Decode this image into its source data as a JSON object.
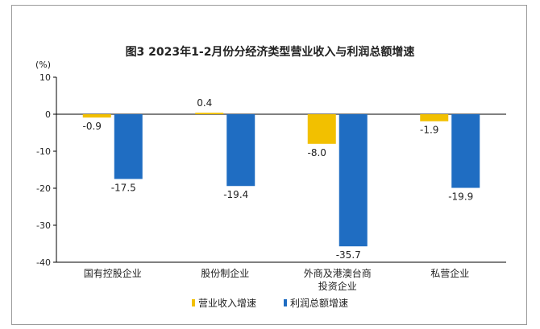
{
  "chart_data": {
    "type": "bar",
    "title": "图3  2023年1-2月份分经济类型营业收入与利润总额增速",
    "ylabel": "(%)",
    "ylim": [
      -40,
      10
    ],
    "yticks": [
      "10",
      "0",
      "-10",
      "-20",
      "-30",
      "-40"
    ],
    "categories": [
      "国有控股企业",
      "股份制企业",
      "外商及港澳台商投资企业",
      "私营企业"
    ],
    "category_lines": [
      [
        "国有控股企业"
      ],
      [
        "股份制企业"
      ],
      [
        "外商及港澳台商",
        "投资企业"
      ],
      [
        "私营企业"
      ]
    ],
    "series": [
      {
        "name": "营业收入增速",
        "values": [
          -0.9,
          0.4,
          -8.0,
          -1.9
        ],
        "labels": [
          "-0.9",
          "0.4",
          "-8.0",
          "-1.9"
        ],
        "color": "#F2C000"
      },
      {
        "name": "利润总额增速",
        "values": [
          -17.5,
          -19.4,
          -35.7,
          -19.9
        ],
        "labels": [
          "-17.5",
          "-19.4",
          "-35.7",
          "-19.9"
        ],
        "color": "#1F6DC2"
      }
    ],
    "grid": false,
    "legend_position": "bottom"
  }
}
